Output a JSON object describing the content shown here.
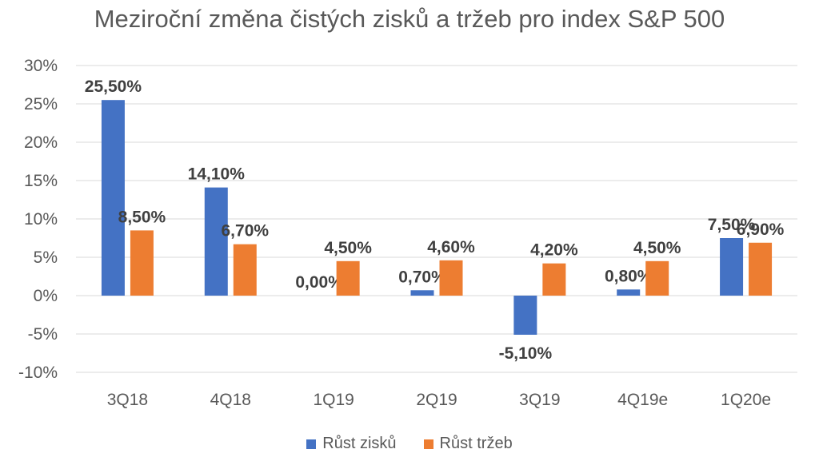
{
  "chart_data": {
    "type": "bar",
    "title": "Meziroční změna čistých zisků a tržeb pro index S&P 500",
    "categories": [
      "3Q18",
      "4Q18",
      "1Q19",
      "2Q19",
      "3Q19",
      "4Q19e",
      "1Q20e"
    ],
    "series": [
      {
        "name": "Růst zisků",
        "color": "#4472C4",
        "values": [
          25.5,
          14.1,
          0.0,
          0.7,
          -5.1,
          0.8,
          7.5
        ],
        "labels": [
          "25,50%",
          "14,10%",
          "0,00%",
          "0,70%",
          "-5,10%",
          "0,80%",
          "7,50%"
        ]
      },
      {
        "name": "Růst tržeb",
        "color": "#ED7D31",
        "values": [
          8.5,
          6.7,
          4.5,
          4.6,
          4.2,
          4.5,
          6.9
        ],
        "labels": [
          "8,50%",
          "6,70%",
          "4,50%",
          "4,60%",
          "4,20%",
          "4,50%",
          "6,90%"
        ]
      }
    ],
    "ylim": [
      -10,
      30
    ],
    "yticks": [
      30,
      25,
      20,
      15,
      10,
      5,
      0,
      -5,
      -10
    ],
    "ytick_labels": [
      "30%",
      "25%",
      "20%",
      "15%",
      "10%",
      "5%",
      "0%",
      "-5%",
      "-10%"
    ],
    "grid": true,
    "legend": "bottom"
  }
}
